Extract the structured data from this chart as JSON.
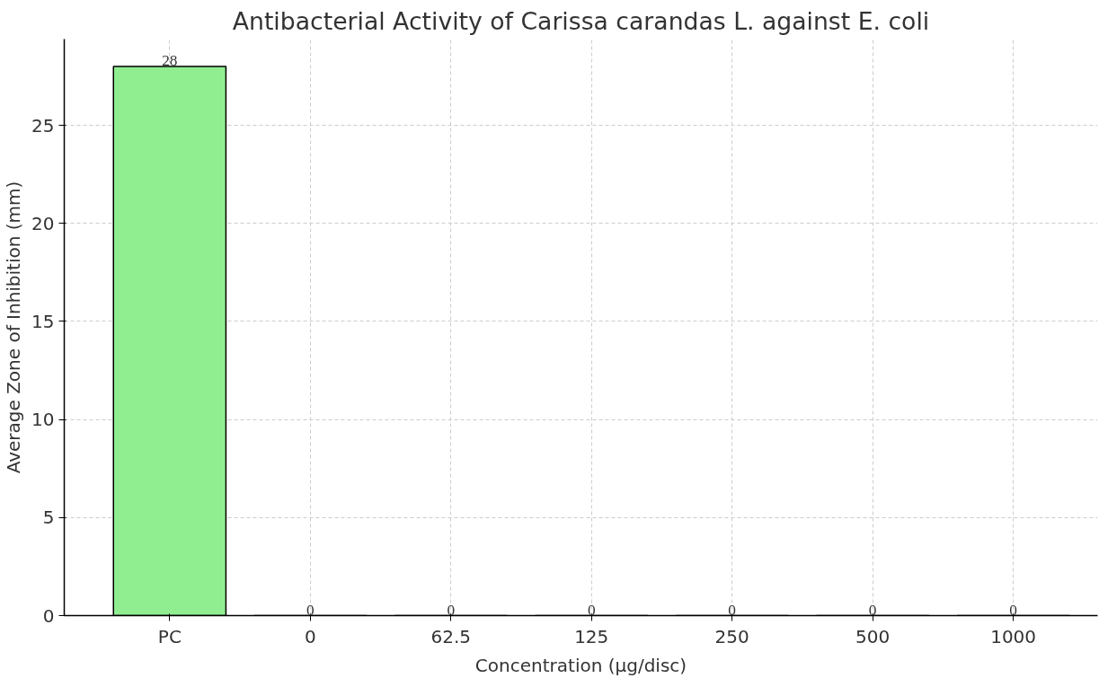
{
  "chart_data": {
    "type": "bar",
    "title": "Antibacterial Activity of Carissa carandas L. against E. coli",
    "xlabel": "Concentration (µg/disc)",
    "ylabel": "Average Zone of Inhibition (mm)",
    "categories": [
      "PC",
      "0",
      "62.5",
      "125",
      "250",
      "500",
      "1000"
    ],
    "values": [
      28,
      0,
      0,
      0,
      0,
      0,
      0
    ],
    "color": "#90ee90",
    "ylim": [
      0,
      29.4
    ],
    "yticks": [
      0,
      5,
      10,
      15,
      20,
      25
    ],
    "grid": true,
    "data_labels": true
  }
}
